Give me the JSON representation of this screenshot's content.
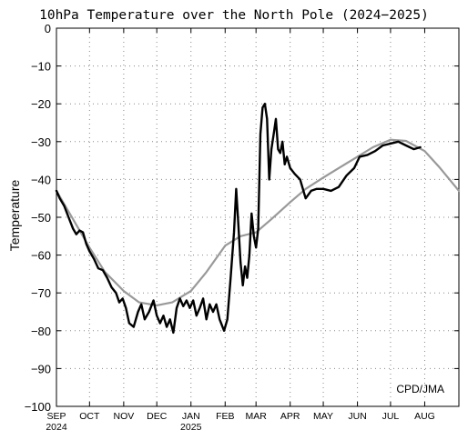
{
  "chart_data": {
    "type": "line",
    "title": "10hPa Temperature over the North Pole (2024−2025)",
    "ylabel": "Temperature",
    "xlabel": "",
    "credit": "CPD/JMA",
    "ylim": [
      -100,
      0
    ],
    "yticks": [
      0,
      -10,
      -20,
      -30,
      -40,
      -50,
      -60,
      -70,
      -80,
      -90,
      -100
    ],
    "xlim": [
      "2024-09-01",
      "2025-09-01"
    ],
    "x_ticks": [
      {
        "label": "SEP",
        "date": "2024-09-01",
        "year": "2024"
      },
      {
        "label": "OCT",
        "date": "2024-10-01"
      },
      {
        "label": "NOV",
        "date": "2024-11-01"
      },
      {
        "label": "DEC",
        "date": "2024-12-01"
      },
      {
        "label": "JAN",
        "date": "2025-01-01",
        "year": "2025"
      },
      {
        "label": "FEB",
        "date": "2025-02-01"
      },
      {
        "label": "MAR",
        "date": "2025-03-01"
      },
      {
        "label": "APR",
        "date": "2025-04-01"
      },
      {
        "label": "MAY",
        "date": "2025-05-01"
      },
      {
        "label": "JUN",
        "date": "2025-06-01"
      },
      {
        "label": "JUL",
        "date": "2025-07-01"
      },
      {
        "label": "AUG",
        "date": "2025-08-01"
      }
    ],
    "grid": true,
    "series": [
      {
        "color": "#999999",
        "points": [
          [
            "2024-09-01",
            -43
          ],
          [
            "2024-09-15",
            -50
          ],
          [
            "2024-10-01",
            -58
          ],
          [
            "2024-10-15",
            -64.5
          ],
          [
            "2024-11-01",
            -69.5
          ],
          [
            "2024-11-15",
            -72.5
          ],
          [
            "2024-12-01",
            -73.3
          ],
          [
            "2024-12-15",
            -72.5
          ],
          [
            "2025-01-01",
            -69.5
          ],
          [
            "2025-01-15",
            -64.5
          ],
          [
            "2025-02-01",
            -57.5
          ],
          [
            "2025-02-15",
            -55
          ],
          [
            "2025-03-01",
            -54
          ],
          [
            "2025-03-15",
            -50.5
          ],
          [
            "2025-04-01",
            -46
          ],
          [
            "2025-04-15",
            -42.5
          ],
          [
            "2025-05-01",
            -39.5
          ],
          [
            "2025-05-15",
            -37
          ],
          [
            "2025-06-01",
            -34
          ],
          [
            "2025-06-15",
            -31.5
          ],
          [
            "2025-07-01",
            -29.5
          ],
          [
            "2025-07-15",
            -29.8
          ],
          [
            "2025-08-01",
            -32.5
          ],
          [
            "2025-08-15",
            -37
          ],
          [
            "2025-09-01",
            -43
          ]
        ]
      },
      {
        "color": "#000000",
        "points": [
          [
            "2024-09-01",
            -43
          ],
          [
            "2024-09-04",
            -45
          ],
          [
            "2024-09-08",
            -47
          ],
          [
            "2024-09-12",
            -50
          ],
          [
            "2024-09-16",
            -53
          ],
          [
            "2024-09-19",
            -54.5
          ],
          [
            "2024-09-22",
            -53.5
          ],
          [
            "2024-09-25",
            -54
          ],
          [
            "2024-09-28",
            -57
          ],
          [
            "2024-10-01",
            -59
          ],
          [
            "2024-10-05",
            -61
          ],
          [
            "2024-10-09",
            -63.5
          ],
          [
            "2024-10-13",
            -64
          ],
          [
            "2024-10-17",
            -66
          ],
          [
            "2024-10-21",
            -68.5
          ],
          [
            "2024-10-25",
            -70
          ],
          [
            "2024-10-28",
            -72.5
          ],
          [
            "2024-10-31",
            -71.5
          ],
          [
            "2024-11-03",
            -74
          ],
          [
            "2024-11-06",
            -78
          ],
          [
            "2024-11-10",
            -79
          ],
          [
            "2024-11-14",
            -75
          ],
          [
            "2024-11-17",
            -73
          ],
          [
            "2024-11-20",
            -77
          ],
          [
            "2024-11-24",
            -75
          ],
          [
            "2024-11-28",
            -72
          ],
          [
            "2024-12-01",
            -76
          ],
          [
            "2024-12-04",
            -78
          ],
          [
            "2024-12-07",
            -76
          ],
          [
            "2024-12-10",
            -79
          ],
          [
            "2024-12-13",
            -77
          ],
          [
            "2024-12-16",
            -80.5
          ],
          [
            "2024-12-19",
            -74
          ],
          [
            "2024-12-22",
            -71.5
          ],
          [
            "2024-12-25",
            -73.5
          ],
          [
            "2024-12-28",
            -72
          ],
          [
            "2024-12-31",
            -74
          ],
          [
            "2025-01-03",
            -72
          ],
          [
            "2025-01-06",
            -76
          ],
          [
            "2025-01-09",
            -74
          ],
          [
            "2025-01-12",
            -71.5
          ],
          [
            "2025-01-15",
            -77
          ],
          [
            "2025-01-18",
            -73
          ],
          [
            "2025-01-21",
            -75
          ],
          [
            "2025-01-24",
            -73
          ],
          [
            "2025-01-27",
            -77
          ],
          [
            "2025-01-31",
            -80
          ],
          [
            "2025-02-03",
            -77
          ],
          [
            "2025-02-06",
            -66
          ],
          [
            "2025-02-09",
            -54
          ],
          [
            "2025-02-11",
            -42.5
          ],
          [
            "2025-02-13",
            -52
          ],
          [
            "2025-02-15",
            -62
          ],
          [
            "2025-02-17",
            -68
          ],
          [
            "2025-02-19",
            -63
          ],
          [
            "2025-02-21",
            -66
          ],
          [
            "2025-02-23",
            -60
          ],
          [
            "2025-02-25",
            -49
          ],
          [
            "2025-02-27",
            -55
          ],
          [
            "2025-03-01",
            -58
          ],
          [
            "2025-03-03",
            -53
          ],
          [
            "2025-03-05",
            -28
          ],
          [
            "2025-03-07",
            -21
          ],
          [
            "2025-03-09",
            -20
          ],
          [
            "2025-03-11",
            -24
          ],
          [
            "2025-03-13",
            -40
          ],
          [
            "2025-03-15",
            -32
          ],
          [
            "2025-03-17",
            -28
          ],
          [
            "2025-03-19",
            -24
          ],
          [
            "2025-03-21",
            -32
          ],
          [
            "2025-03-23",
            -33
          ],
          [
            "2025-03-25",
            -30
          ],
          [
            "2025-03-27",
            -36
          ],
          [
            "2025-03-29",
            -34
          ],
          [
            "2025-04-01",
            -37
          ],
          [
            "2025-04-05",
            -38.5
          ],
          [
            "2025-04-10",
            -40
          ],
          [
            "2025-04-15",
            -45
          ],
          [
            "2025-04-20",
            -43
          ],
          [
            "2025-04-25",
            -42.5
          ],
          [
            "2025-05-01",
            -42.5
          ],
          [
            "2025-05-08",
            -43
          ],
          [
            "2025-05-15",
            -42
          ],
          [
            "2025-05-22",
            -39
          ],
          [
            "2025-05-29",
            -37
          ],
          [
            "2025-06-03",
            -34
          ],
          [
            "2025-06-10",
            -33.5
          ],
          [
            "2025-06-17",
            -32.5
          ],
          [
            "2025-06-24",
            -31
          ],
          [
            "2025-07-01",
            -30.5
          ],
          [
            "2025-07-08",
            -30
          ],
          [
            "2025-07-15",
            -31
          ],
          [
            "2025-07-22",
            -32
          ],
          [
            "2025-07-28",
            -31.5
          ]
        ]
      }
    ]
  }
}
